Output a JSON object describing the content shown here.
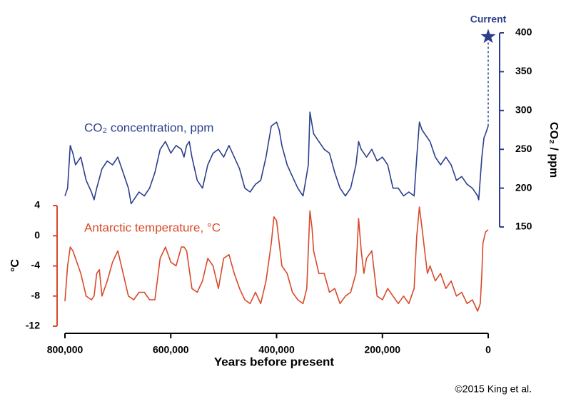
{
  "chart_data": {
    "type": "line",
    "xlabel": "Years before present",
    "ylabel": "°C",
    "y2label": "CO₂ / ppm",
    "xlim": [
      800000,
      0
    ],
    "xticks": [
      {
        "value": 800000,
        "label": "800,000"
      },
      {
        "value": 600000,
        "label": "600,000"
      },
      {
        "value": 400000,
        "label": "400,000"
      },
      {
        "value": 200000,
        "label": "200,000"
      },
      0
    ],
    "ylim": [
      -12,
      4
    ],
    "yticks": [
      4,
      0,
      -4,
      -8,
      -12
    ],
    "y2lim": [
      150,
      400
    ],
    "y2ticks": [
      150,
      200,
      250,
      300,
      350,
      400
    ],
    "series": [
      {
        "name": "CO₂ concentration, ppm",
        "color": "#2b3f8c",
        "axis": "y2",
        "x": [
          800000,
          795000,
          790000,
          785000,
          780000,
          770000,
          760000,
          750000,
          745000,
          740000,
          730000,
          720000,
          710000,
          700000,
          690000,
          680000,
          675000,
          670000,
          660000,
          650000,
          640000,
          630000,
          620000,
          610000,
          600000,
          590000,
          580000,
          575000,
          570000,
          565000,
          560000,
          550000,
          540000,
          530000,
          520000,
          510000,
          500000,
          490000,
          480000,
          470000,
          460000,
          450000,
          440000,
          430000,
          420000,
          410000,
          400000,
          395000,
          390000,
          380000,
          370000,
          360000,
          350000,
          340000,
          337000,
          330000,
          320000,
          310000,
          300000,
          290000,
          280000,
          270000,
          260000,
          250000,
          245000,
          240000,
          230000,
          220000,
          210000,
          200000,
          190000,
          180000,
          170000,
          160000,
          150000,
          140000,
          135000,
          130000,
          125000,
          120000,
          110000,
          100000,
          90000,
          80000,
          70000,
          60000,
          50000,
          40000,
          30000,
          20000,
          18000,
          12000,
          8000,
          5000,
          0
        ],
        "values": [
          190,
          200,
          255,
          245,
          230,
          240,
          210,
          195,
          185,
          200,
          225,
          235,
          230,
          240,
          220,
          200,
          180,
          185,
          195,
          190,
          200,
          220,
          250,
          260,
          245,
          255,
          250,
          240,
          255,
          260,
          240,
          210,
          200,
          230,
          245,
          250,
          240,
          255,
          240,
          225,
          200,
          195,
          205,
          210,
          240,
          280,
          285,
          275,
          255,
          230,
          215,
          200,
          190,
          230,
          298,
          270,
          260,
          250,
          245,
          220,
          200,
          190,
          200,
          230,
          260,
          250,
          240,
          250,
          235,
          240,
          230,
          200,
          200,
          190,
          195,
          190,
          240,
          285,
          275,
          270,
          260,
          240,
          230,
          240,
          230,
          210,
          215,
          205,
          200,
          190,
          185,
          240,
          265,
          270,
          280
        ]
      },
      {
        "name": "Antarctic temperature, °C",
        "color": "#d84a2a",
        "x": [
          800000,
          795000,
          790000,
          785000,
          780000,
          770000,
          760000,
          750000,
          745000,
          740000,
          735000,
          730000,
          720000,
          710000,
          700000,
          690000,
          680000,
          670000,
          660000,
          650000,
          640000,
          630000,
          620000,
          610000,
          600000,
          590000,
          580000,
          575000,
          570000,
          565000,
          560000,
          550000,
          540000,
          530000,
          520000,
          510000,
          500000,
          490000,
          480000,
          470000,
          460000,
          450000,
          440000,
          430000,
          420000,
          410000,
          405000,
          400000,
          395000,
          390000,
          380000,
          370000,
          360000,
          350000,
          343000,
          337000,
          333000,
          330000,
          320000,
          310000,
          300000,
          290000,
          280000,
          270000,
          260000,
          250000,
          245000,
          240000,
          235000,
          230000,
          220000,
          215000,
          210000,
          200000,
          190000,
          180000,
          170000,
          160000,
          150000,
          140000,
          135000,
          130000,
          125000,
          120000,
          115000,
          110000,
          100000,
          90000,
          80000,
          70000,
          60000,
          50000,
          40000,
          30000,
          20000,
          15000,
          12000,
          10000,
          5000,
          0
        ],
        "values": [
          -8.7,
          -4,
          -1.5,
          -2,
          -3,
          -5,
          -8,
          -8.5,
          -8,
          -5,
          -4.5,
          -8,
          -6,
          -3.5,
          -2,
          -5,
          -8,
          -8.5,
          -7.5,
          -7.5,
          -8.5,
          -8.5,
          -3,
          -1.5,
          -3.5,
          -4,
          -1.5,
          -1.5,
          -2,
          -4.5,
          -7,
          -7.5,
          -6,
          -3,
          -4,
          -7,
          -3,
          -2.5,
          -5,
          -7,
          -8.5,
          -9,
          -7.5,
          -9,
          -6,
          -1,
          2.5,
          2,
          -1,
          -4,
          -5,
          -7.5,
          -8.5,
          -9,
          -7,
          3.3,
          1,
          -2,
          -5,
          -5,
          -7.5,
          -7,
          -9,
          -8,
          -7.5,
          -5,
          2.3,
          -2,
          -5,
          -3,
          -2,
          -5,
          -8,
          -8.5,
          -7,
          -8,
          -9,
          -8,
          -9,
          -7,
          0,
          3.8,
          1,
          -2,
          -5,
          -4,
          -6,
          -5,
          -7,
          -6,
          -8,
          -7.5,
          -9,
          -8.5,
          -10,
          -9,
          -5,
          -1,
          0.5,
          0.8
        ]
      }
    ],
    "annotation": {
      "text": "Current",
      "x": 0,
      "y": 395
    },
    "credit": "©2015 King et al."
  }
}
